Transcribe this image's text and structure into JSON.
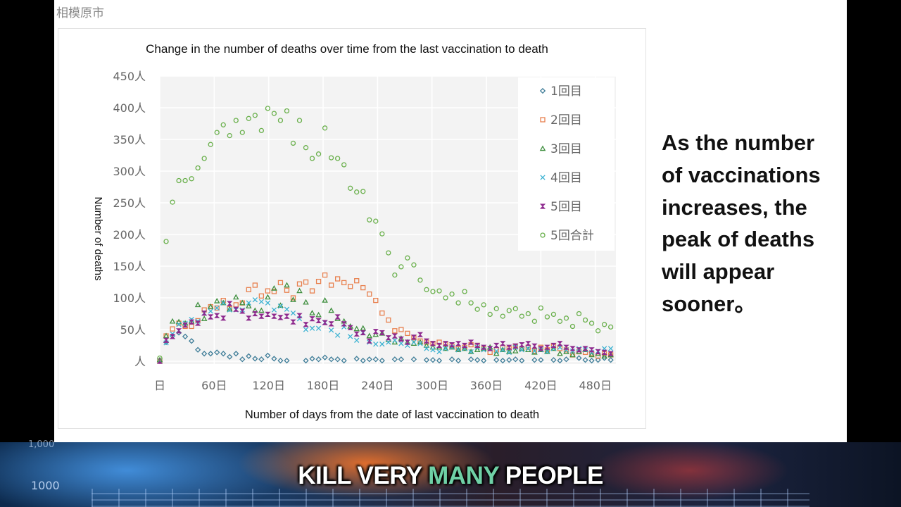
{
  "source_label": "相模原市",
  "side_text": [
    "As the number",
    "of vaccinations",
    "increases, the",
    "peak of deaths",
    "will appear",
    "sooner。"
  ],
  "banner": {
    "caption_before": "KILL VERY ",
    "caption_highlight": "MANY",
    "caption_after": " PEOPLE",
    "highlight_color": "#6fd0a6",
    "background_labels": [
      "1,000",
      "1000"
    ]
  },
  "chart_data": {
    "type": "scatter",
    "title": "Change in the number of deaths over time from the last vaccination to death",
    "xlabel": "Number of days from the date of last vaccination to death",
    "ylabel": "Number of deaths",
    "xlim": [
      0,
      502
    ],
    "ylim": [
      0,
      450
    ],
    "grid": true,
    "legend_position": "top-right",
    "x_ticks": [
      0,
      60,
      120,
      180,
      240,
      300,
      360,
      420,
      480
    ],
    "x_tick_labels": [
      "日",
      "60日",
      "120日",
      "180日",
      "240日",
      "300日",
      "360日",
      "420日",
      "480日"
    ],
    "y_ticks": [
      0,
      50,
      100,
      150,
      200,
      250,
      300,
      350,
      400,
      450
    ],
    "y_tick_labels": [
      "人",
      "50人",
      "100人",
      "150人",
      "200人",
      "250人",
      "300人",
      "350人",
      "400人",
      "450人"
    ],
    "x": [
      0,
      7,
      14,
      21,
      28,
      35,
      42,
      49,
      56,
      63,
      70,
      77,
      84,
      91,
      98,
      105,
      112,
      119,
      126,
      133,
      140,
      147,
      154,
      161,
      168,
      175,
      182,
      189,
      196,
      203,
      210,
      217,
      224,
      231,
      238,
      245,
      252,
      259,
      266,
      273,
      280,
      287,
      294,
      301,
      308,
      315,
      322,
      329,
      336,
      343,
      350,
      357,
      364,
      371,
      378,
      385,
      392,
      399,
      406,
      413,
      420,
      427,
      434,
      441,
      448,
      455,
      462,
      469,
      476,
      483,
      490,
      497
    ],
    "series": [
      {
        "name": "1回目",
        "marker": "diamond",
        "color": "#3f7d98",
        "values": [
          0,
          30,
          40,
          45,
          39,
          32,
          18,
          12,
          12,
          14,
          12,
          7,
          12,
          3,
          8,
          4,
          3,
          9,
          4,
          1,
          1,
          null,
          null,
          1,
          4,
          3,
          6,
          3,
          3,
          1,
          null,
          4,
          1,
          3,
          3,
          1,
          null,
          3,
          3,
          null,
          3,
          null,
          2,
          2,
          1,
          null,
          3,
          1,
          null,
          3,
          2,
          1,
          null,
          2,
          1,
          2,
          3,
          1,
          null,
          2,
          2,
          null,
          2,
          1,
          3,
          null,
          5,
          2,
          1,
          2,
          5,
          2
        ]
      },
      {
        "name": "2回目",
        "marker": "square",
        "color": "#e8804e",
        "values": [
          0,
          40,
          51,
          60,
          55,
          55,
          64,
          81,
          86,
          84,
          96,
          83,
          89,
          92,
          113,
          120,
          103,
          111,
          110,
          124,
          112,
          100,
          122,
          125,
          111,
          126,
          136,
          120,
          130,
          124,
          118,
          127,
          116,
          106,
          96,
          76,
          65,
          48,
          50,
          44,
          37,
          32,
          30,
          28,
          30,
          27,
          24,
          20,
          22,
          26,
          25,
          20,
          14,
          18,
          22,
          20,
          24,
          20,
          22,
          16,
          22,
          18,
          24,
          20,
          18,
          10,
          15,
          14,
          12,
          8,
          12,
          10
        ]
      },
      {
        "name": "3回目",
        "marker": "triangle",
        "color": "#3f8f3f",
        "values": [
          2,
          40,
          63,
          62,
          60,
          63,
          89,
          67,
          86,
          95,
          92,
          82,
          101,
          92,
          87,
          80,
          80,
          101,
          115,
          88,
          120,
          97,
          111,
          93,
          76,
          73,
          96,
          80,
          67,
          63,
          55,
          51,
          52,
          40,
          42,
          44,
          34,
          30,
          36,
          30,
          28,
          30,
          25,
          22,
          22,
          20,
          22,
          18,
          20,
          15,
          18,
          20,
          22,
          12,
          18,
          15,
          16,
          20,
          18,
          14,
          18,
          15,
          20,
          12,
          15,
          10,
          15,
          18,
          10,
          12,
          8,
          10
        ]
      },
      {
        "name": "4回目",
        "marker": "x",
        "color": "#3cb2d2",
        "values": [
          0,
          29,
          43,
          58,
          60,
          66,
          63,
          76,
          79,
          84,
          92,
          81,
          81,
          81,
          92,
          97,
          94,
          92,
          81,
          87,
          82,
          76,
          67,
          50,
          52,
          52,
          61,
          49,
          41,
          54,
          39,
          33,
          45,
          30,
          27,
          27,
          30,
          33,
          28,
          25,
          30,
          28,
          20,
          18,
          15,
          20,
          22,
          18,
          20,
          15,
          22,
          18,
          20,
          16,
          18,
          14,
          22,
          18,
          20,
          16,
          18,
          15,
          20,
          22,
          18,
          16,
          20,
          18,
          14,
          16,
          20,
          20
        ]
      },
      {
        "name": "5回目",
        "marker": "bowtie",
        "color": "#8e2a8e",
        "values": [
          0,
          33,
          39,
          48,
          57,
          62,
          60,
          76,
          70,
          72,
          68,
          91,
          82,
          79,
          68,
          75,
          71,
          74,
          71,
          69,
          71,
          62,
          72,
          58,
          67,
          64,
          61,
          59,
          70,
          59,
          53,
          43,
          45,
          32,
          47,
          45,
          37,
          40,
          35,
          30,
          38,
          42,
          32,
          28,
          25,
          28,
          26,
          28,
          25,
          30,
          25,
          22,
          20,
          25,
          28,
          22,
          24,
          26,
          28,
          24,
          20,
          22,
          25,
          28,
          22,
          20,
          18,
          20,
          18,
          15,
          14,
          12
        ]
      },
      {
        "name": "5回合計",
        "marker": "circle",
        "color": "#6ab04c",
        "values": [
          5,
          189,
          251,
          285,
          285,
          288,
          305,
          320,
          342,
          361,
          373,
          356,
          380,
          361,
          383,
          388,
          364,
          399,
          391,
          380,
          395,
          344,
          380,
          337,
          320,
          327,
          368,
          321,
          320,
          310,
          273,
          267,
          268,
          223,
          221,
          201,
          171,
          136,
          149,
          163,
          152,
          128,
          113,
          110,
          111,
          100,
          106,
          92,
          110,
          92,
          82,
          89,
          74,
          83,
          71,
          80,
          83,
          71,
          75,
          63,
          84,
          70,
          74,
          63,
          68,
          55,
          75,
          65,
          60,
          48,
          58,
          54
        ]
      }
    ]
  }
}
